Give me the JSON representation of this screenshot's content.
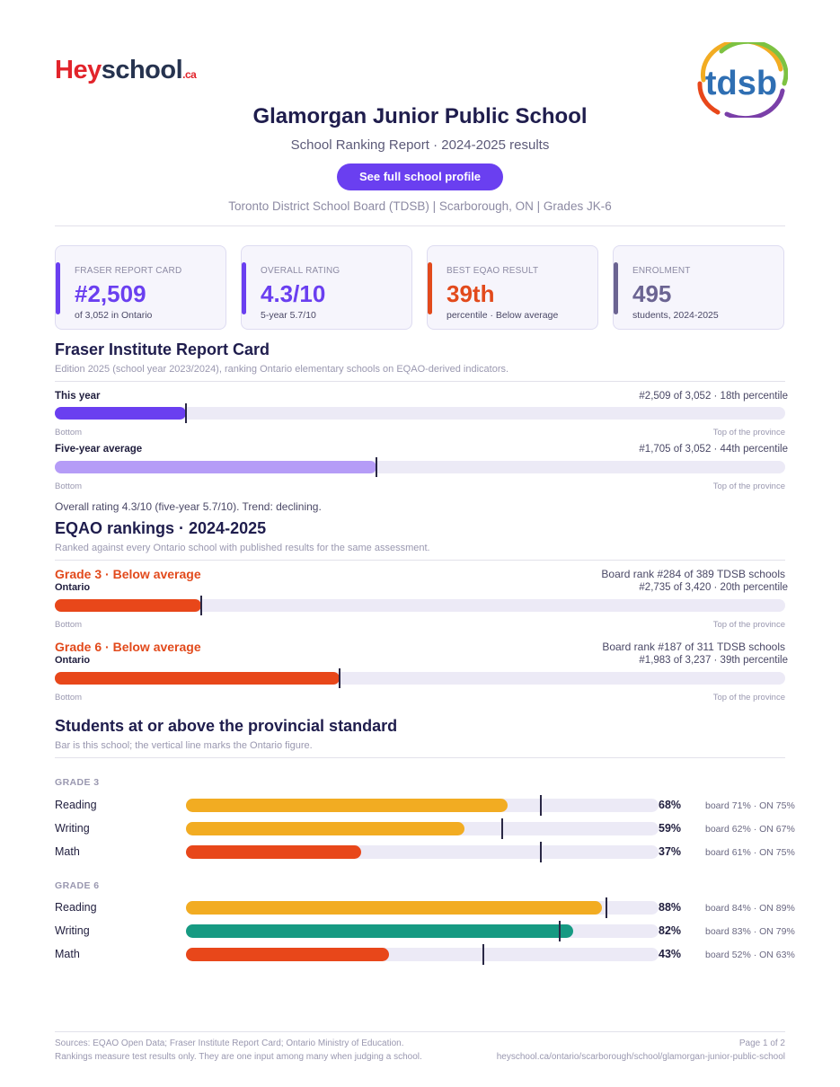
{
  "header": {
    "brand_left": "Hey",
    "brand_right": "school",
    "brand_suffix": ".ca",
    "board_logo_text": "tdsb",
    "title": "Glamorgan Junior Public School",
    "subtitle": "School Ranking Report  ·  2024-2025 results",
    "cta_label": "See full school profile",
    "meta": "Toronto District School Board (TDSB)  |  Scarborough, ON  |  Grades JK-6"
  },
  "cards": [
    {
      "label": "Fraser Report Card",
      "value": "#2,509",
      "sub": "of 3,052 in Ontario",
      "color": "#6a3ff0"
    },
    {
      "label": "Overall Rating",
      "value": "4.3/10",
      "sub": "5-year 5.7/10",
      "color": "#6a3ff0"
    },
    {
      "label": "Best EQAO Result",
      "value": "39th",
      "sub": "percentile  ·  Below average",
      "color": "#e24a1c"
    },
    {
      "label": "Enrolment",
      "value": "495",
      "sub": "students, 2024-2025",
      "color": "#6b6492"
    }
  ],
  "fraser": {
    "heading": "Fraser Institute Report Card",
    "note": "Edition 2025 (school year 2023/2024), ranking Ontario elementary schools on EQAO-derived indicators.",
    "rows": [
      {
        "label": "This year",
        "right": "#2,509 of 3,052  ·  18th percentile",
        "percentile": 18,
        "color": "#6a3ff0"
      },
      {
        "label": "Five-year average",
        "right": "#1,705 of 3,052  ·  44th percentile",
        "percentile": 44,
        "color": "#b59cf7"
      }
    ],
    "axis_left": "Bottom",
    "axis_right": "Top of the province",
    "summary": "Overall rating 4.3/10 (five-year 5.7/10). Trend: declining."
  },
  "eqao": {
    "heading": "EQAO rankings  ·  2024-2025",
    "note": "Ranked against every Ontario school with published results for the same assessment.",
    "axis_left": "Bottom",
    "axis_right": "Top of the province",
    "grades": [
      {
        "title": "Grade 3  ·  Below average",
        "sub": "Ontario",
        "board_rank": "Board rank #284 of 389 TDSB schools",
        "ontario": "#2,735 of 3,420  ·  20th percentile",
        "percentile": 20,
        "color": "#e8471a"
      },
      {
        "title": "Grade 6  ·  Below average",
        "sub": "Ontario",
        "board_rank": "Board rank #187 of 311 TDSB schools",
        "ontario": "#1,983 of 3,237  ·  39th percentile",
        "percentile": 39,
        "color": "#e8471a"
      }
    ]
  },
  "standard": {
    "heading": "Students at or above the provincial standard",
    "note": "Bar is this school; the vertical line marks the Ontario figure.",
    "groups": [
      {
        "grade": "GRADE 3",
        "rows": [
          {
            "subject": "Reading",
            "pct": 68,
            "pct_label": "68%",
            "ontario": 75,
            "cmp": "board 71%  ·  ON 75%",
            "color": "#f2ac22"
          },
          {
            "subject": "Writing",
            "pct": 59,
            "pct_label": "59%",
            "ontario": 67,
            "cmp": "board 62%  ·  ON 67%",
            "color": "#f2ac22"
          },
          {
            "subject": "Math",
            "pct": 37,
            "pct_label": "37%",
            "ontario": 75,
            "cmp": "board 61%  ·  ON 75%",
            "color": "#e8471a"
          }
        ]
      },
      {
        "grade": "GRADE 6",
        "rows": [
          {
            "subject": "Reading",
            "pct": 88,
            "pct_label": "88%",
            "ontario": 89,
            "cmp": "board 84%  ·  ON 89%",
            "color": "#f2ac22"
          },
          {
            "subject": "Writing",
            "pct": 82,
            "pct_label": "82%",
            "ontario": 79,
            "cmp": "board 83%  ·  ON 79%",
            "color": "#169a82"
          },
          {
            "subject": "Math",
            "pct": 43,
            "pct_label": "43%",
            "ontario": 63,
            "cmp": "board 52%  ·  ON 63%",
            "color": "#e8471a"
          }
        ]
      }
    ]
  },
  "footer": {
    "sources": "Sources: EQAO Open Data; Fraser Institute Report Card; Ontario Ministry of Education.",
    "disclaimer": "Rankings measure test results only. They are one input among many when judging a school.",
    "page": "Page 1 of 2",
    "url": "heyschool.ca/ontario/scarborough/school/glamorgan-junior-public-school"
  }
}
